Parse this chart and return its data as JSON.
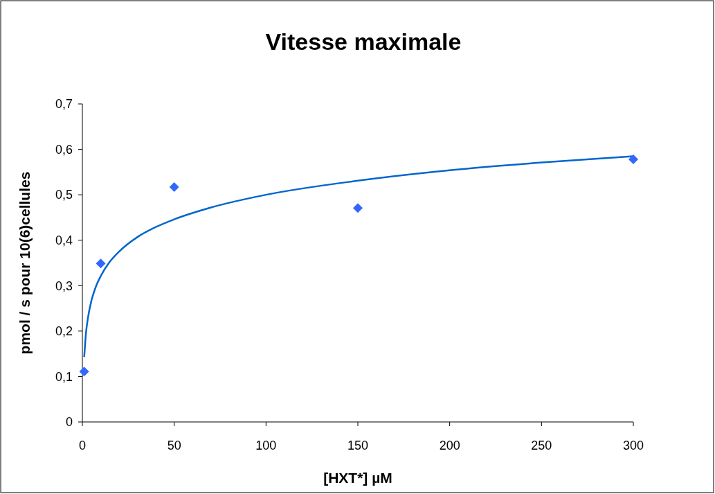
{
  "chart_data": {
    "type": "scatter",
    "title": "Vitesse maximale",
    "xlabel": "[HXT*] µM",
    "ylabel": "pmol / s pour 10(6)cellules",
    "xlim": [
      0,
      300
    ],
    "xticks": [
      0,
      50,
      100,
      150,
      200,
      250,
      300
    ],
    "ylim": [
      0,
      0.7
    ],
    "yticks": [
      {
        "value": 0,
        "label": "0"
      },
      {
        "value": 0.1,
        "label": "0,1"
      },
      {
        "value": 0.2,
        "label": "0,2"
      },
      {
        "value": 0.3,
        "label": "0,3"
      },
      {
        "value": 0.4,
        "label": "0,4"
      },
      {
        "value": 0.5,
        "label": "0,5"
      },
      {
        "value": 0.6,
        "label": "0,6"
      },
      {
        "value": 0.7,
        "label": "0,7"
      }
    ],
    "grid": false,
    "series": [
      {
        "type": "scatter",
        "color": "#3366ff",
        "marker": "diamond",
        "x": [
          1,
          10,
          50,
          150,
          300
        ],
        "values": [
          0.111,
          0.349,
          0.517,
          0.471,
          0.578
        ]
      },
      {
        "type": "line",
        "color": "#0066cc",
        "line_style": "solid",
        "marker": "none",
        "x": [
          1,
          2,
          3,
          5,
          7,
          10,
          15,
          20,
          30,
          40,
          50,
          70,
          100,
          150,
          200,
          250,
          300
        ],
        "values": [
          0.143,
          0.197,
          0.228,
          0.268,
          0.294,
          0.321,
          0.353,
          0.375,
          0.407,
          0.429,
          0.446,
          0.472,
          0.5,
          0.531,
          0.554,
          0.571,
          0.585
        ]
      }
    ]
  }
}
